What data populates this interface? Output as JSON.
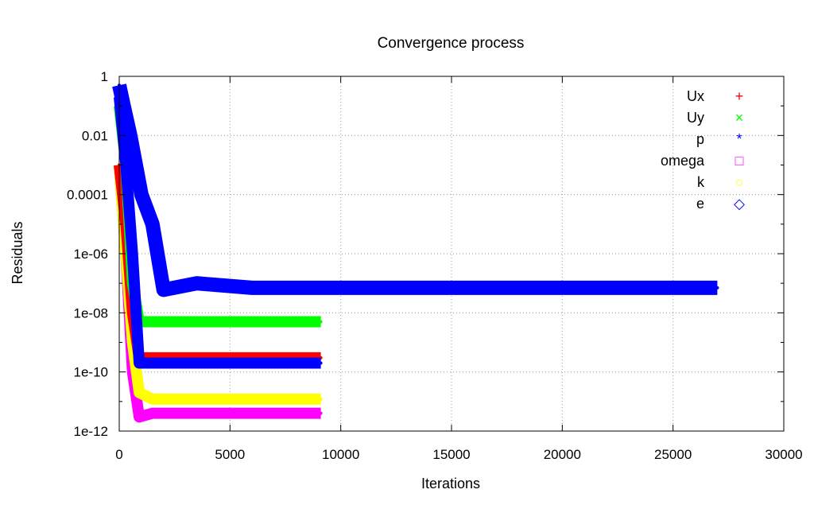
{
  "chart_data": {
    "type": "scatter",
    "title": "Convergence process",
    "xlabel": "Iterations",
    "ylabel": "Residuals",
    "xlim": [
      0,
      30000
    ],
    "ylim": [
      1e-12,
      1
    ],
    "yscale": "log",
    "grid": true,
    "legend_position": "top-right",
    "x_ticks": [
      0,
      5000,
      10000,
      15000,
      20000,
      25000,
      30000
    ],
    "x_tick_labels": [
      "0",
      "5000",
      "10000",
      "15000",
      "20000",
      "25000",
      "30000"
    ],
    "y_ticks": [
      1,
      0.01,
      0.0001,
      1e-06,
      1e-08,
      1e-10,
      1e-12
    ],
    "y_tick_labels": [
      "1",
      "0.01",
      "0.0001",
      "1e-06",
      "1e-08",
      "1e-10",
      "1e-12"
    ],
    "series": [
      {
        "name": "Ux",
        "color": "#ff0000",
        "marker": "plus",
        "points": [
          [
            0,
            0.001
          ],
          [
            300,
            1e-05
          ],
          [
            600,
            1e-08
          ],
          [
            900,
            3e-10
          ],
          [
            1500,
            3e-10
          ],
          [
            5000,
            3e-10
          ],
          [
            9100,
            3e-10
          ]
        ]
      },
      {
        "name": "Uy",
        "color": "#00ff00",
        "marker": "cross",
        "points": [
          [
            0,
            0.1
          ],
          [
            300,
            0.001
          ],
          [
            600,
            1e-07
          ],
          [
            900,
            5e-09
          ],
          [
            1500,
            5e-09
          ],
          [
            5000,
            5e-09
          ],
          [
            9100,
            5e-09
          ]
        ]
      },
      {
        "name": "p",
        "color": "#0000ff",
        "marker": "star",
        "points": [
          [
            0,
            0.5
          ],
          [
            200,
            0.1
          ],
          [
            500,
            0.01
          ],
          [
            1000,
            0.0001
          ],
          [
            1500,
            1e-05
          ],
          [
            2000,
            6e-08
          ],
          [
            3500,
            1e-07
          ],
          [
            6000,
            7e-08
          ],
          [
            15000,
            7e-08
          ],
          [
            27000,
            7e-08
          ]
        ]
      },
      {
        "name": "omega",
        "color": "#ff00ff",
        "marker": "square",
        "points": [
          [
            0,
            0.001
          ],
          [
            300,
            1e-06
          ],
          [
            600,
            1e-10
          ],
          [
            900,
            3e-12
          ],
          [
            1500,
            4e-12
          ],
          [
            5000,
            4e-12
          ],
          [
            9100,
            4e-12
          ]
        ]
      },
      {
        "name": "k",
        "color": "#ffff00",
        "marker": "circle",
        "points": [
          [
            0,
            0.001
          ],
          [
            300,
            1e-06
          ],
          [
            600,
            1e-09
          ],
          [
            900,
            2e-11
          ],
          [
            1500,
            1.2e-11
          ],
          [
            5000,
            1.2e-11
          ],
          [
            9100,
            1.2e-11
          ]
        ]
      },
      {
        "name": "e",
        "color": "#0000ff",
        "marker": "diamond",
        "points": [
          [
            0,
            0.2
          ],
          [
            300,
            0.001
          ],
          [
            600,
            1e-06
          ],
          [
            900,
            2e-10
          ],
          [
            1500,
            2e-10
          ],
          [
            5000,
            2e-10
          ],
          [
            9100,
            2e-10
          ]
        ]
      }
    ]
  }
}
